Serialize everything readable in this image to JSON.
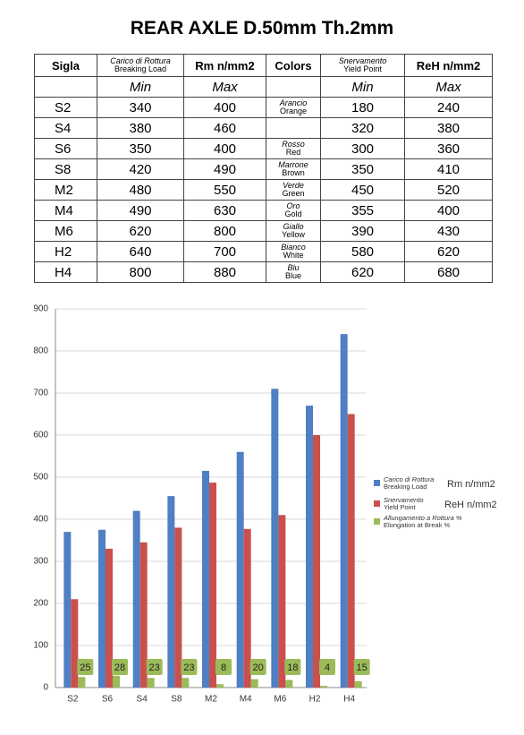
{
  "title": "REAR AXLE D.50mm  Th.2mm",
  "table": {
    "header": [
      [
        "Sigla"
      ],
      [
        "Carico di Rottura",
        "Breaking Load"
      ],
      [
        "Rm n/mm2"
      ],
      [
        "Colors"
      ],
      [
        "Snervamento",
        "Yield Point"
      ],
      [
        "ReH n/mm2"
      ]
    ],
    "subheader": [
      null,
      "Min",
      "Max",
      null,
      "Min",
      "Max"
    ],
    "rows": [
      [
        "S2",
        340,
        400,
        [
          "Arancio",
          "Orange"
        ],
        180,
        240
      ],
      [
        "S4",
        380,
        460,
        null,
        320,
        380
      ],
      [
        "S6",
        350,
        400,
        [
          "Rosso",
          "Red"
        ],
        300,
        360
      ],
      [
        "S8",
        420,
        490,
        [
          "Marrone",
          "Brown"
        ],
        350,
        410
      ],
      [
        "M2",
        480,
        550,
        [
          "Verde",
          "Green"
        ],
        450,
        520
      ],
      [
        "M4",
        490,
        630,
        [
          "Oro",
          "Gold"
        ],
        355,
        400
      ],
      [
        "M6",
        620,
        800,
        [
          "Giallo",
          "Yellow"
        ],
        390,
        430
      ],
      [
        "H2",
        640,
        700,
        [
          "Bianco",
          "White"
        ],
        580,
        620
      ],
      [
        "H4",
        800,
        880,
        [
          "Blu",
          "Blue"
        ],
        620,
        680
      ]
    ]
  },
  "chart_data": {
    "type": "bar",
    "categories": [
      "S2",
      "S6",
      "S4",
      "S8",
      "M2",
      "M4",
      "M6",
      "H2",
      "H4"
    ],
    "series": [
      {
        "name": "Carico di Rottura",
        "subname": "Breaking Load",
        "unit": "Rm n/mm2",
        "color": "#4f7fc4",
        "values": [
          370,
          375,
          420,
          455,
          515,
          560,
          710,
          670,
          840
        ]
      },
      {
        "name": "Snervamento",
        "subname": "Yield Point",
        "unit": "ReH n/mm2",
        "color": "#c9504d",
        "values": [
          210,
          330,
          345,
          380,
          487,
          377,
          410,
          600,
          650
        ]
      },
      {
        "name": "Allungamento a Rottura  %",
        "subname": "Elongation at Break  %",
        "color": "#9bbb59",
        "values": [
          25,
          28,
          23,
          23,
          8,
          20,
          18,
          4,
          15
        ]
      }
    ],
    "ylim": [
      0,
      900
    ],
    "yticks": [
      0,
      100,
      200,
      300,
      400,
      500,
      600,
      700,
      800,
      900
    ],
    "grid": true
  }
}
